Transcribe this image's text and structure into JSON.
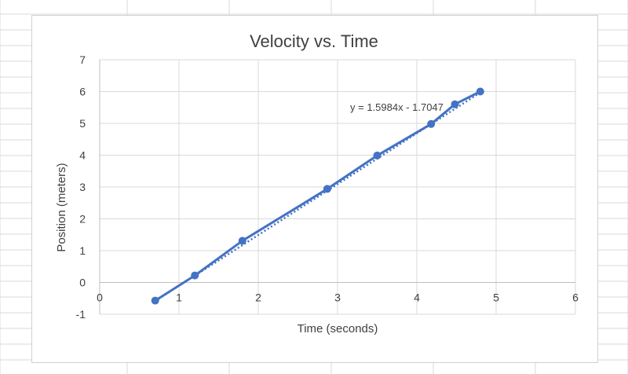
{
  "chart_data": {
    "type": "scatter",
    "title": "Velocity vs. Time",
    "xlabel": "Time (seconds)",
    "ylabel": "Position (meters)",
    "xlim": [
      0,
      6
    ],
    "ylim": [
      -1,
      7
    ],
    "x_ticks": [
      0,
      1,
      2,
      3,
      4,
      5,
      6
    ],
    "y_ticks": [
      -1,
      0,
      1,
      2,
      3,
      4,
      5,
      6,
      7
    ],
    "grid": true,
    "series": [
      {
        "x": [
          0.7,
          1.2,
          1.8,
          2.87,
          3.5,
          4.18,
          4.48,
          4.8
        ],
        "y": [
          -0.57,
          0.22,
          1.31,
          2.94,
          3.99,
          4.98,
          5.6,
          6.0
        ],
        "color": "#4472c4"
      }
    ],
    "trendline": {
      "type": "linear",
      "slope": 1.5984,
      "intercept": -1.7047,
      "equation": "y = 1.5984x - 1.7047",
      "color": "#4472c4"
    }
  }
}
